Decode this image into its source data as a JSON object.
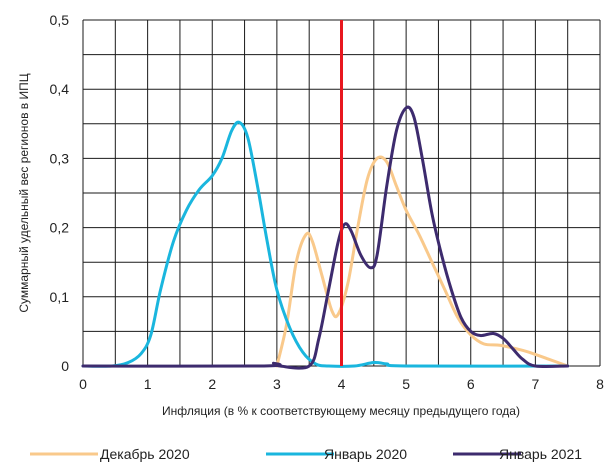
{
  "chart_data": {
    "type": "line",
    "title": "",
    "xlabel": "Инфляция (в % к соответствующему месяцу предыдущего года)",
    "ylabel": "Суммарный удельный вес регионов в ИПЦ",
    "xlim": [
      0,
      8
    ],
    "ylim": [
      0,
      0.5
    ],
    "x_ticks": [
      "0",
      "1",
      "2",
      "3",
      "4",
      "5",
      "6",
      "7",
      "8"
    ],
    "y_ticks": [
      "0",
      "0,1",
      "0,2",
      "0,3",
      "0,4",
      "0,5"
    ],
    "grid": true,
    "legend_position": "bottom",
    "reference_line": {
      "x": 4,
      "color": "#e8171f"
    },
    "series": [
      {
        "name": "Декабрь 2020",
        "color": "#f9c98b",
        "points": [
          [
            3.0,
            0.0
          ],
          [
            3.15,
            0.06
          ],
          [
            3.3,
            0.15
          ],
          [
            3.45,
            0.19
          ],
          [
            3.55,
            0.18
          ],
          [
            3.7,
            0.13
          ],
          [
            3.85,
            0.08
          ],
          [
            3.95,
            0.075
          ],
          [
            4.1,
            0.12
          ],
          [
            4.25,
            0.2
          ],
          [
            4.4,
            0.27
          ],
          [
            4.55,
            0.3
          ],
          [
            4.7,
            0.295
          ],
          [
            4.85,
            0.26
          ],
          [
            5.0,
            0.225
          ],
          [
            5.2,
            0.19
          ],
          [
            5.4,
            0.15
          ],
          [
            5.6,
            0.11
          ],
          [
            5.8,
            0.07
          ],
          [
            6.0,
            0.045
          ],
          [
            6.2,
            0.032
          ],
          [
            6.45,
            0.03
          ],
          [
            6.7,
            0.025
          ],
          [
            6.9,
            0.02
          ],
          [
            7.2,
            0.01
          ],
          [
            7.5,
            0.0
          ]
        ]
      },
      {
        "name": "Январь 2020",
        "color": "#1ab6de",
        "points": [
          [
            0.0,
            0.0
          ],
          [
            0.45,
            0.0
          ],
          [
            0.7,
            0.005
          ],
          [
            0.9,
            0.018
          ],
          [
            1.05,
            0.045
          ],
          [
            1.2,
            0.11
          ],
          [
            1.4,
            0.18
          ],
          [
            1.6,
            0.225
          ],
          [
            1.8,
            0.255
          ],
          [
            2.0,
            0.275
          ],
          [
            2.15,
            0.3
          ],
          [
            2.3,
            0.34
          ],
          [
            2.42,
            0.352
          ],
          [
            2.55,
            0.33
          ],
          [
            2.7,
            0.26
          ],
          [
            2.85,
            0.18
          ],
          [
            3.0,
            0.11
          ],
          [
            3.2,
            0.055
          ],
          [
            3.4,
            0.02
          ],
          [
            3.6,
            0.003
          ],
          [
            3.8,
            0.0
          ],
          [
            4.2,
            0.0
          ],
          [
            4.5,
            0.005
          ],
          [
            4.7,
            0.003
          ],
          [
            5.0,
            0.0
          ],
          [
            7.5,
            0.0
          ]
        ]
      },
      {
        "name": "Январь 2021",
        "color": "#3d2b6e",
        "points": [
          [
            0.0,
            0.0
          ],
          [
            2.8,
            0.0
          ],
          [
            2.95,
            0.004
          ],
          [
            3.05,
            0.0
          ],
          [
            3.5,
            0.0
          ],
          [
            3.65,
            0.04
          ],
          [
            3.8,
            0.11
          ],
          [
            3.95,
            0.18
          ],
          [
            4.05,
            0.205
          ],
          [
            4.15,
            0.195
          ],
          [
            4.3,
            0.16
          ],
          [
            4.45,
            0.142
          ],
          [
            4.55,
            0.16
          ],
          [
            4.7,
            0.26
          ],
          [
            4.85,
            0.34
          ],
          [
            5.0,
            0.373
          ],
          [
            5.12,
            0.36
          ],
          [
            5.25,
            0.3
          ],
          [
            5.4,
            0.22
          ],
          [
            5.55,
            0.16
          ],
          [
            5.7,
            0.11
          ],
          [
            5.85,
            0.07
          ],
          [
            6.0,
            0.05
          ],
          [
            6.15,
            0.044
          ],
          [
            6.35,
            0.047
          ],
          [
            6.5,
            0.04
          ],
          [
            6.65,
            0.025
          ],
          [
            6.8,
            0.01
          ],
          [
            7.0,
            0.0
          ],
          [
            7.5,
            0.0
          ]
        ]
      }
    ]
  }
}
